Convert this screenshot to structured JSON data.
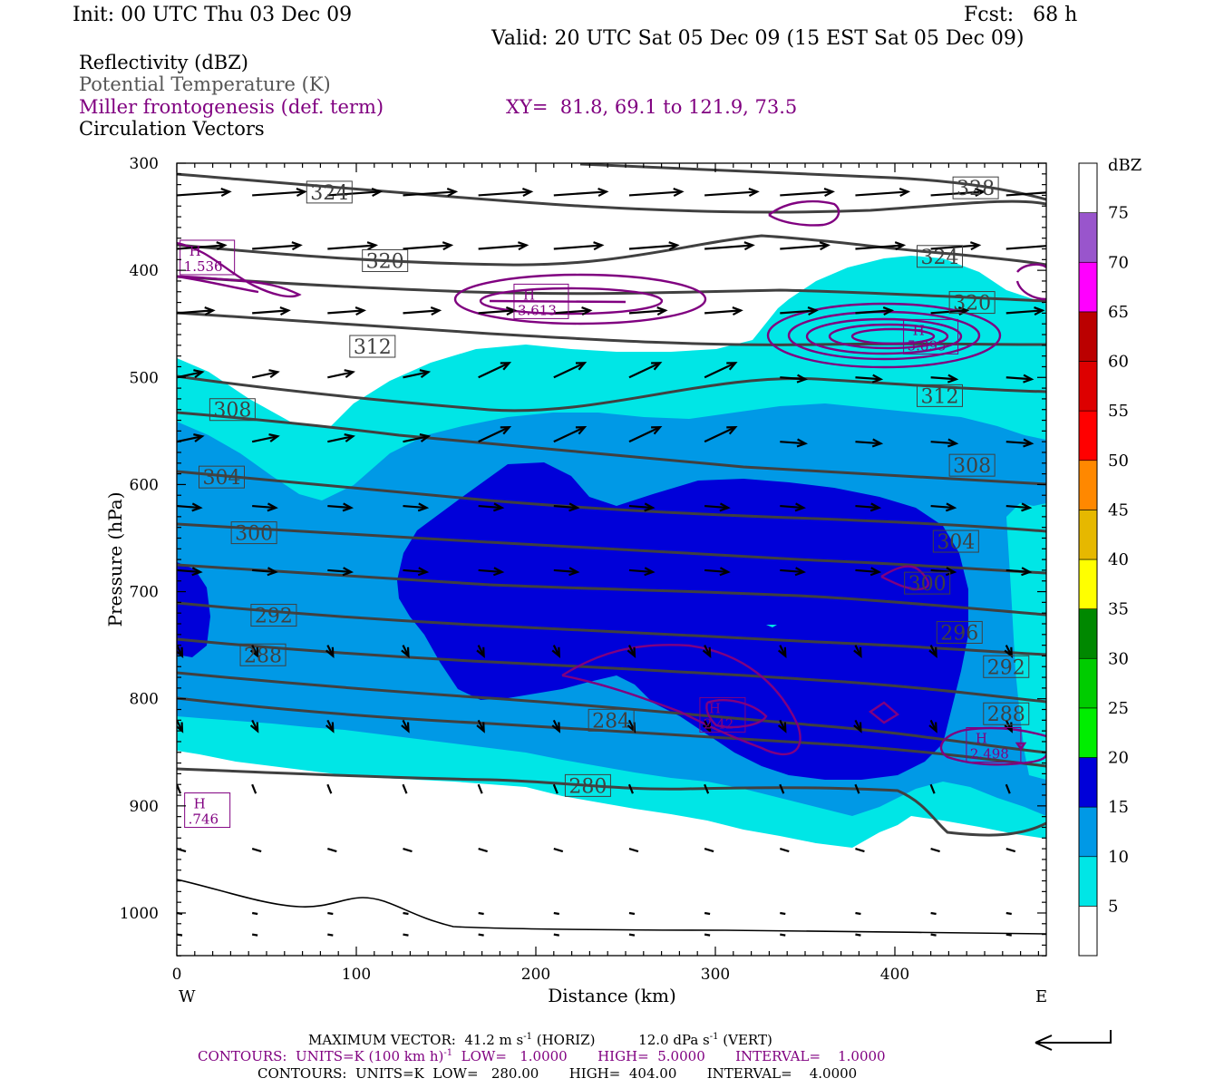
{
  "header": {
    "init": "Init: 00 UTC Thu 03 Dec 09",
    "fcst": "Fcst:   68 h",
    "valid": "Valid: 20 UTC Sat 05 Dec 09 (15 EST Sat 05 Dec 09)"
  },
  "legend": {
    "reflectivity": "Reflectivity (dBZ)",
    "theta": "Potential Temperature (K)",
    "miller": "Miller frontogenesis (def. term)",
    "xy": "XY=  81.8, 69.1 to 121.9, 73.5",
    "vectors": "Circulation Vectors"
  },
  "colors": {
    "theta_line": "#404040",
    "fronto_line": "#800080",
    "vector": "#000000"
  },
  "chart_data": {
    "type": "cross-section",
    "xlabel": "Distance (km)",
    "ylabel": "Pressure (hPa)",
    "xlim": [
      0,
      485
    ],
    "ylim": [
      1040,
      300
    ],
    "x_ticks": [
      "0",
      "100",
      "200",
      "300",
      "400"
    ],
    "y_ticks": [
      "300",
      "400",
      "500",
      "600",
      "700",
      "800",
      "900",
      "1000"
    ],
    "west_label": "W",
    "east_label": "E",
    "colorbar": {
      "unit": "dBZ",
      "levels": [
        "5",
        "10",
        "15",
        "20",
        "25",
        "30",
        "35",
        "40",
        "45",
        "50",
        "55",
        "60",
        "65",
        "70",
        "75"
      ],
      "colors": [
        "#ffffff",
        "#00e6e6",
        "#0099e6",
        "#0000d9",
        "#00ee00",
        "#00cc00",
        "#008800",
        "#ffff00",
        "#e6b800",
        "#ff8800",
        "#ff0000",
        "#dd0000",
        "#bb0000",
        "#ff00ff",
        "#9955cc",
        "#ffffff"
      ]
    },
    "reflectivity_regions": [
      {
        "dbz": 5,
        "color": "#00e6e6"
      },
      {
        "dbz": 10,
        "color": "#0099e6"
      },
      {
        "dbz": 15,
        "color": "#0000d9"
      }
    ],
    "theta_labels": [
      {
        "label": "328",
        "x": 445,
        "p": 323
      },
      {
        "label": "324",
        "x": 85,
        "p": 327
      },
      {
        "label": "324",
        "x": 425,
        "p": 387
      },
      {
        "label": "320",
        "x": 116,
        "p": 391
      },
      {
        "label": "320",
        "x": 443,
        "p": 430
      },
      {
        "label": "312",
        "x": 109,
        "p": 471
      },
      {
        "label": "312",
        "x": 425,
        "p": 517
      },
      {
        "label": "308",
        "x": 31,
        "p": 530
      },
      {
        "label": "308",
        "x": 443,
        "p": 582
      },
      {
        "label": "304",
        "x": 25,
        "p": 593
      },
      {
        "label": "304",
        "x": 434,
        "p": 653
      },
      {
        "label": "300",
        "x": 43,
        "p": 645
      },
      {
        "label": "300",
        "x": 418,
        "p": 692
      },
      {
        "label": "296",
        "x": 436,
        "p": 738
      },
      {
        "label": "292",
        "x": 54,
        "p": 722
      },
      {
        "label": "292",
        "x": 462,
        "p": 770
      },
      {
        "label": "288",
        "x": 48,
        "p": 759
      },
      {
        "label": "288",
        "x": 462,
        "p": 814
      },
      {
        "label": "284",
        "x": 242,
        "p": 820
      },
      {
        "label": "280",
        "x": 229,
        "p": 881
      }
    ],
    "fronto_maxima": [
      {
        "label": "H",
        "value": "1.536",
        "x": 17,
        "p": 388
      },
      {
        "label": "H",
        "value": "3.613",
        "x": 203,
        "p": 429
      },
      {
        "label": "H",
        "value": "5.895",
        "x": 420,
        "p": 462
      },
      {
        "label": "H",
        "value": "2.42",
        "x": 304,
        "p": 815
      },
      {
        "label": "H",
        "value": "2.498",
        "x": 455,
        "p": 843
      },
      {
        "label": "H",
        "value": ".746",
        "x": 17,
        "p": 904
      }
    ]
  },
  "footer": {
    "max_vector_a": "MAXIMUM VECTOR:  41.2 m s",
    "sup_m1": "-1",
    "max_vector_b": " (HORIZ)          12.0 dPa s",
    "max_vector_c": " (VERT)",
    "contours1_a": "CONTOURS:  UNITS=K (100 km h)",
    "contours1_b": "  LOW=   1.0000       HIGH=  5.0000       INTERVAL=    1.0000",
    "contours2": "CONTOURS:  UNITS=K  LOW=   280.00       HIGH=  404.00       INTERVAL=    4.0000"
  }
}
